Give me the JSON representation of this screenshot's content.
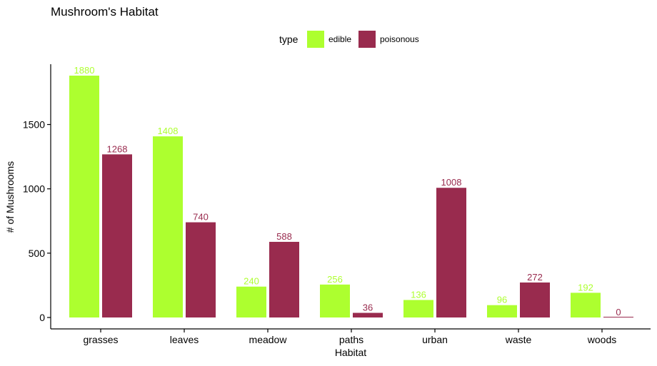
{
  "chart_data": {
    "type": "bar",
    "title": "Mushroom's Habitat",
    "xlabel": "Habitat",
    "ylabel": "# of Mushrooms",
    "ylim": [
      0,
      1880
    ],
    "yticks": [
      0,
      500,
      1000,
      1500
    ],
    "grid": false,
    "legend": {
      "title": "type",
      "position": "top"
    },
    "categories": [
      "grasses",
      "leaves",
      "meadow",
      "paths",
      "urban",
      "waste",
      "woods"
    ],
    "series": [
      {
        "name": "edible",
        "color": "#adff2f",
        "values": [
          1880,
          1408,
          240,
          256,
          136,
          96,
          192
        ]
      },
      {
        "name": "poisonous",
        "color": "#992b4e",
        "values": [
          1268,
          740,
          588,
          36,
          1008,
          272,
          0
        ]
      }
    ]
  }
}
